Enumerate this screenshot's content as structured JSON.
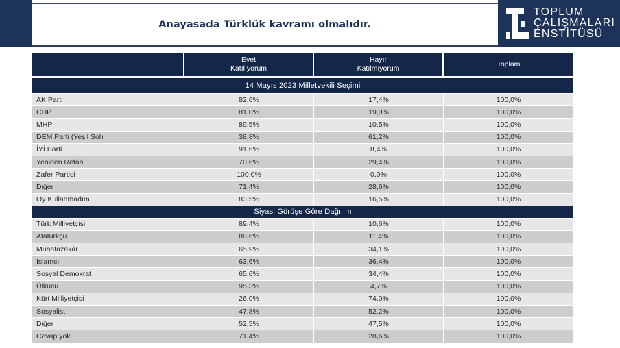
{
  "header": {
    "title": "Anayasada Türklük kavramı olmalıdır.",
    "logo": {
      "icon": "toplum-calismalari-enstitusu-logo-icon",
      "lines": [
        "TOPLUM",
        "ÇALIŞMALARI",
        "ENSTİTÜSÜ"
      ]
    },
    "colors": {
      "navy": "#1d3359",
      "table_header": "#142748",
      "row_light": "#e6e6e7",
      "row_dark": "#cdcdcf"
    }
  },
  "table": {
    "columns": [
      {
        "line1": "",
        "line2": ""
      },
      {
        "line1": "Evet",
        "line2": "Katılıyorum"
      },
      {
        "line1": "Hayır",
        "line2": "Katılmıyorum"
      },
      {
        "line1": "Toplam",
        "line2": ""
      }
    ],
    "sections": [
      {
        "title": "14 Mayıs 2023 Milletvekili Seçimi",
        "rows": [
          {
            "label": "AK Parti",
            "evet": "82,6%",
            "hayir": "17,4%",
            "toplam": "100,0%"
          },
          {
            "label": "CHP",
            "evet": "81,0%",
            "hayir": "19,0%",
            "toplam": "100,0%"
          },
          {
            "label": "MHP",
            "evet": "89,5%",
            "hayir": "10,5%",
            "toplam": "100,0%"
          },
          {
            "label": "DEM Parti (Yeşil Sol)",
            "evet": "38,8%",
            "hayir": "61,2%",
            "toplam": "100,0%"
          },
          {
            "label": "İYİ Parti",
            "evet": "91,6%",
            "hayir": "8,4%",
            "toplam": "100,0%"
          },
          {
            "label": "Yeniden Refah",
            "evet": "70,6%",
            "hayir": "29,4%",
            "toplam": "100,0%"
          },
          {
            "label": "Zafer Partisi",
            "evet": "100,0%",
            "hayir": "0,0%",
            "toplam": "100,0%"
          },
          {
            "label": "Diğer",
            "evet": "71,4%",
            "hayir": "28,6%",
            "toplam": "100,0%"
          },
          {
            "label": "Oy Kullanmadım",
            "evet": "83,5%",
            "hayir": "16,5%",
            "toplam": "100,0%"
          }
        ]
      },
      {
        "title": "Siyasi Görüşe Göre Dağılım",
        "rows": [
          {
            "label": "Türk Milliyetçisi",
            "evet": "89,4%",
            "hayir": "10,6%",
            "toplam": "100,0%"
          },
          {
            "label": "Atatürkçü",
            "evet": "88,6%",
            "hayir": "11,4%",
            "toplam": "100,0%"
          },
          {
            "label": "Muhafazakâr",
            "evet": "65,9%",
            "hayir": "34,1%",
            "toplam": "100,0%"
          },
          {
            "label": "İslamcı",
            "evet": "63,6%",
            "hayir": "36,4%",
            "toplam": "100,0%"
          },
          {
            "label": "Sosyal Demokrat",
            "evet": "65,6%",
            "hayir": "34,4%",
            "toplam": "100,0%"
          },
          {
            "label": "Ülkücü",
            "evet": "95,3%",
            "hayir": "4,7%",
            "toplam": "100,0%"
          },
          {
            "label": "Kürt Milliyetçisi",
            "evet": "26,0%",
            "hayir": "74,0%",
            "toplam": "100,0%"
          },
          {
            "label": "Sosyalist",
            "evet": "47,8%",
            "hayir": "52,2%",
            "toplam": "100,0%"
          },
          {
            "label": "Diğer",
            "evet": "52,5%",
            "hayir": "47,5%",
            "toplam": "100,0%"
          },
          {
            "label": "Cevap yok",
            "evet": "71,4%",
            "hayir": "28,6%",
            "toplam": "100,0%"
          }
        ]
      }
    ]
  }
}
